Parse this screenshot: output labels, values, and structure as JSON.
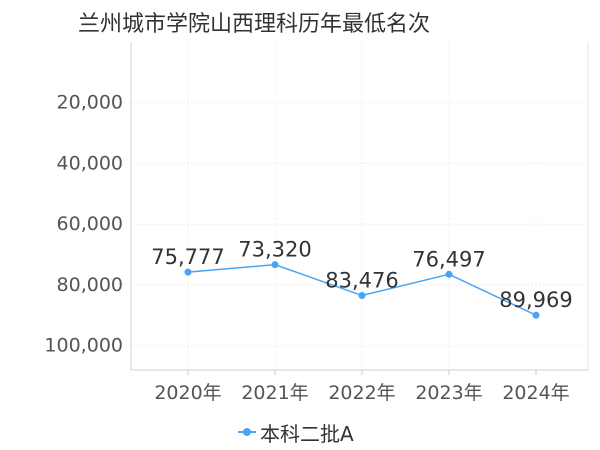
{
  "chart_data": {
    "type": "line",
    "title": "兰州城市学院山西理科历年最低名次",
    "categories": [
      "2020年",
      "2021年",
      "2022年",
      "2023年",
      "2024年"
    ],
    "series": [
      {
        "name": "本科二批A",
        "values": [
          75777,
          73320,
          83476,
          76497,
          89969
        ],
        "labels": [
          "75,777",
          "73,320",
          "83,476",
          "76,497",
          "89,969"
        ],
        "color": "#4aa4f5"
      }
    ],
    "y_ticks": [
      "20,000",
      "40,000",
      "60,000",
      "80,000",
      "100,000"
    ],
    "y_tick_values": [
      20000,
      40000,
      60000,
      80000,
      100000
    ],
    "ylim": [
      0,
      108000
    ],
    "y_inverted": true,
    "grid": true,
    "legend_position": "bottom"
  }
}
